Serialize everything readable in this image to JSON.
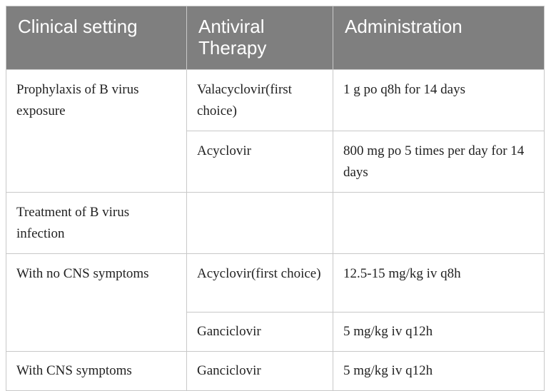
{
  "table": {
    "headers": [
      "Clinical setting",
      "Antiviral Therapy",
      "Administration"
    ],
    "rows": {
      "r0": {
        "setting": "Prophylaxis of B virus exposure",
        "therapy": "Valacyclovir(first choice)",
        "administration": "1 g po q8h for 14 days"
      },
      "r1": {
        "therapy": "Acyclovir",
        "administration": "800 mg po 5 times per day for 14 days"
      },
      "r2": {
        "setting": "Treatment of B virus infection",
        "therapy": "",
        "administration": ""
      },
      "r3": {
        "setting": "With no CNS symptoms",
        "therapy": "Acyclovir(first choice)",
        "administration": "12.5-15 mg/kg iv q8h"
      },
      "r4": {
        "therapy": "Ganciclovir",
        "administration": "5 mg/kg iv q12h"
      },
      "r5": {
        "setting": "With CNS symptoms",
        "therapy": "Ganciclovir",
        "administration": "5 mg/kg iv q12h"
      }
    }
  }
}
